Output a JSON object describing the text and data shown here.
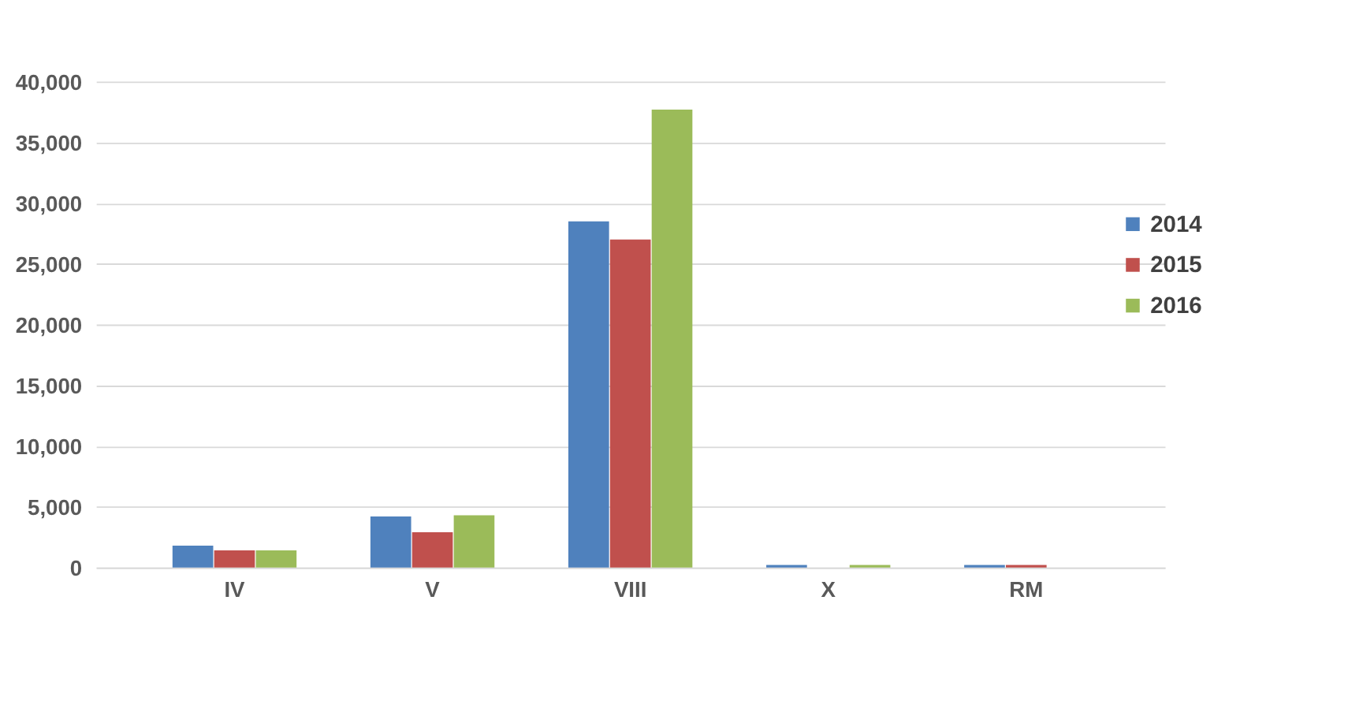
{
  "chart_data": {
    "type": "bar",
    "categories": [
      "IV",
      "V",
      "VIII",
      "X",
      "RM"
    ],
    "series": [
      {
        "name": "2014",
        "color": "#4f81bd",
        "values": [
          1800,
          4200,
          28500,
          200,
          200
        ]
      },
      {
        "name": "2015",
        "color": "#c0504d",
        "values": [
          1400,
          2900,
          27000,
          0,
          200
        ]
      },
      {
        "name": "2016",
        "color": "#9bbb59",
        "values": [
          1400,
          4300,
          37700,
          200,
          0
        ]
      }
    ],
    "ylim": [
      0,
      40000
    ],
    "yticks": [
      0,
      {
        "value": 5000,
        "label": "5,000"
      },
      {
        "value": 10000,
        "label": "10,000"
      },
      {
        "value": 15000,
        "label": "15,000"
      },
      {
        "value": 20000,
        "label": "20,000"
      },
      {
        "value": 25000,
        "label": "25,000"
      },
      {
        "value": 30000,
        "label": "30,000"
      },
      {
        "value": 35000,
        "label": "35,000"
      },
      {
        "value": 40000,
        "label": "40,000"
      }
    ],
    "grid": "y",
    "legend": "right"
  }
}
